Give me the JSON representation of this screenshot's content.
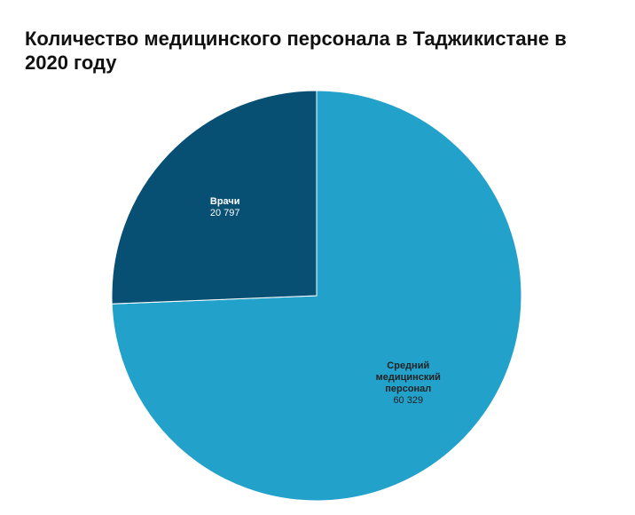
{
  "chart_data": {
    "type": "pie",
    "title": "Количество медицинского персонала в Таджикистане в 2020 году",
    "categories": [
      "Средний медицинский персонал",
      "Врачи"
    ],
    "values": [
      60329,
      20797
    ],
    "value_labels": [
      "60 329",
      "20 797"
    ],
    "colors": [
      "#22a1cb",
      "#074f73"
    ],
    "label_colors": [
      "#222222",
      "#ffffff"
    ]
  }
}
